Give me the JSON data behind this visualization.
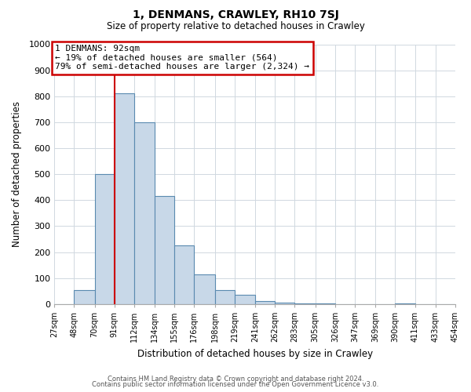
{
  "title": "1, DENMANS, CRAWLEY, RH10 7SJ",
  "subtitle": "Size of property relative to detached houses in Crawley",
  "xlabel": "Distribution of detached houses by size in Crawley",
  "ylabel": "Number of detached properties",
  "bin_edges": [
    27,
    48,
    70,
    91,
    112,
    134,
    155,
    176,
    198,
    219,
    241,
    262,
    283,
    305,
    326,
    347,
    369,
    390,
    411,
    433,
    454
  ],
  "bar_heights": [
    0,
    55,
    500,
    810,
    700,
    415,
    225,
    115,
    55,
    35,
    10,
    5,
    2,
    1,
    0,
    0,
    0,
    2,
    0,
    0
  ],
  "bar_color": "#c8d8e8",
  "bar_edgecolor": "#5a8ab0",
  "property_line_x": 91,
  "property_line_color": "#cc0000",
  "ylim": [
    0,
    1000
  ],
  "annotation_line1": "1 DENMANS: 92sqm",
  "annotation_line2": "← 19% of detached houses are smaller (564)",
  "annotation_line3": "79% of semi-detached houses are larger (2,324) →",
  "annotation_box_edgecolor": "#cc0000",
  "annotation_box_facecolor": "#ffffff",
  "footer_line1": "Contains HM Land Registry data © Crown copyright and database right 2024.",
  "footer_line2": "Contains public sector information licensed under the Open Government Licence v3.0.",
  "background_color": "#ffffff",
  "grid_color": "#d0d8e0",
  "tick_labels": [
    "27sqm",
    "48sqm",
    "70sqm",
    "91sqm",
    "112sqm",
    "134sqm",
    "155sqm",
    "176sqm",
    "198sqm",
    "219sqm",
    "241sqm",
    "262sqm",
    "283sqm",
    "305sqm",
    "326sqm",
    "347sqm",
    "369sqm",
    "390sqm",
    "411sqm",
    "433sqm",
    "454sqm"
  ]
}
